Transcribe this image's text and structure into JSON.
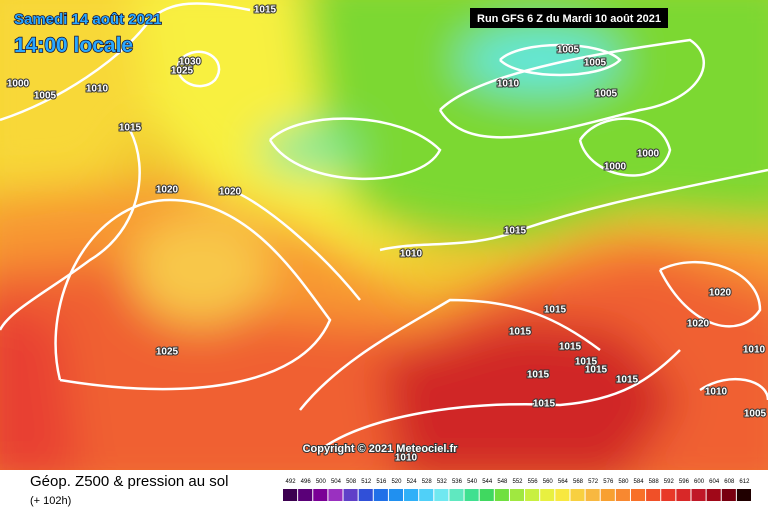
{
  "header": {
    "date": "Samedi 14 août 2021",
    "time": "14:00 locale",
    "run": "Run GFS 6 Z du Mardi 10 août 2021"
  },
  "copyright": "Copyright © 2021 Meteociel.fr",
  "footer": {
    "title": "Géop. Z500 & pression au sol",
    "lead": "(+ 102h)"
  },
  "isobar_labels": [
    "1015",
    "1030",
    "1025",
    "1000",
    "1005",
    "1010",
    "1015",
    "1020",
    "1020",
    "1005",
    "1005",
    "1010",
    "1005",
    "1000",
    "1000",
    "1015",
    "1010",
    "1025",
    "1015",
    "1015",
    "1015",
    "1015",
    "1015",
    "1015",
    "1015",
    "1015",
    "1020",
    "1020",
    "1010",
    "1010",
    "1005",
    "1010"
  ],
  "scale": {
    "values": [
      492,
      496,
      500,
      504,
      508,
      512,
      516,
      520,
      524,
      528,
      532,
      536,
      540,
      544,
      548,
      552,
      556,
      560,
      564,
      568,
      572,
      576,
      580,
      584,
      588,
      592,
      596,
      600,
      604,
      608,
      612
    ],
    "colors": [
      "#3c0050",
      "#5a0078",
      "#7a0096",
      "#9a30c0",
      "#6040c8",
      "#3050d8",
      "#2070e8",
      "#2090f0",
      "#30b0f8",
      "#50d0f8",
      "#70e8f0",
      "#60e8c0",
      "#40e090",
      "#40d860",
      "#70e040",
      "#a0e840",
      "#c8f040",
      "#e8f040",
      "#f8e840",
      "#f8d040",
      "#f8b840",
      "#f8a030",
      "#f88830",
      "#f87028",
      "#f05028",
      "#e83828",
      "#d82828",
      "#c01828",
      "#a00818",
      "#780010",
      "#200000"
    ]
  }
}
